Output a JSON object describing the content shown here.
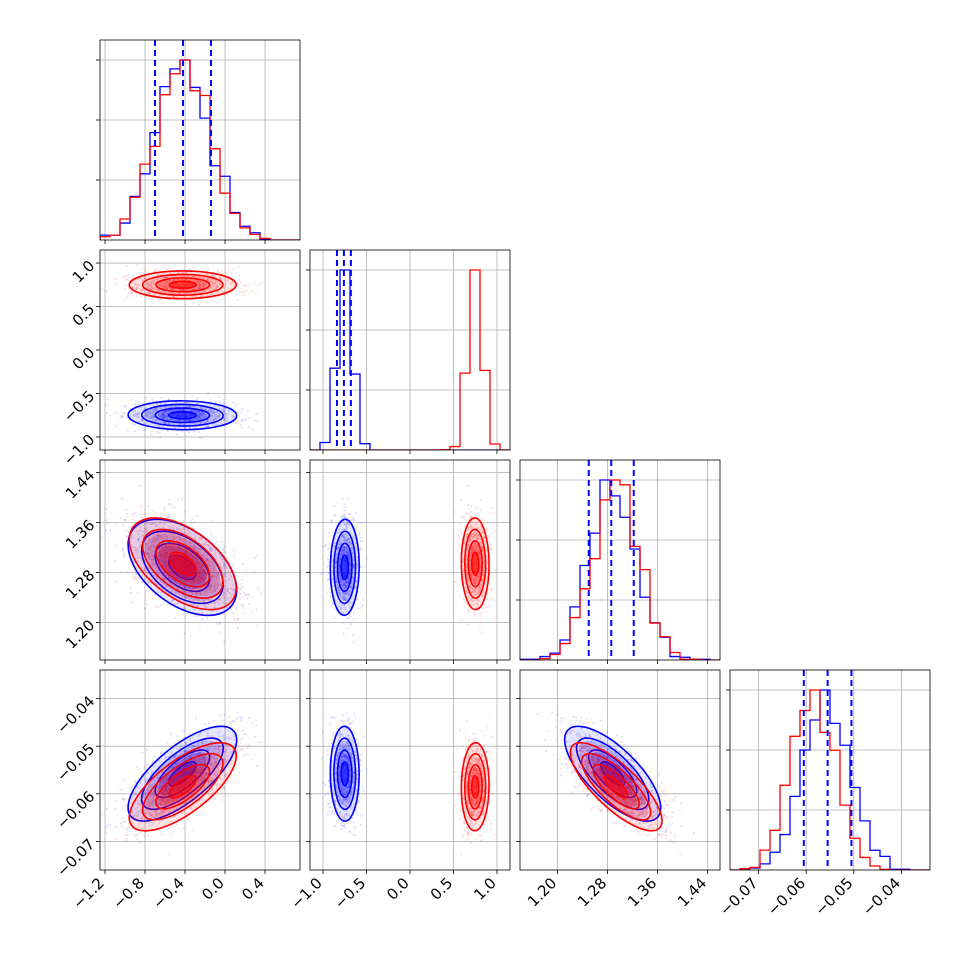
{
  "chart_data": {
    "type": "corner",
    "grid": true,
    "series": [
      {
        "name": "",
        "color": "#0000ff",
        "mean": [
          -0.42,
          -0.75,
          1.286,
          -0.0555
        ],
        "std": [
          0.27,
          0.08,
          0.04,
          0.0049
        ],
        "quantiles": [
          [
            -0.7,
            -0.42,
            -0.14
          ],
          [
            -0.84,
            -0.76,
            -0.68
          ],
          [
            1.25,
            1.286,
            1.322
          ],
          [
            -0.0605,
            -0.0555,
            -0.0505
          ]
        ],
        "corr": {
          "1-0": 0.0,
          "2-0": -0.5,
          "2-1": 0.0,
          "3-0": 0.5,
          "3-1": 0.0,
          "3-2": -0.7
        }
      },
      {
        "name": "",
        "color": "#ff0000",
        "mean": [
          -0.42,
          0.75,
          1.293,
          -0.0585
        ],
        "std": [
          0.27,
          0.08,
          0.036,
          0.0045
        ],
        "corr": {
          "1-0": 0.0,
          "2-0": -0.5,
          "2-1": 0.0,
          "3-0": 0.5,
          "3-1": 0.0,
          "3-2": -0.7
        }
      }
    ],
    "axes": [
      {
        "range": [
          -1.25,
          0.75
        ],
        "ticks": [
          "-1.2",
          "-0.8",
          "-0.4",
          "0.0",
          "0.4"
        ]
      },
      {
        "range": [
          -1.15,
          1.15
        ],
        "ticks": [
          "-1.0",
          "-0.5",
          "0.0",
          "0.5",
          "1.0"
        ]
      },
      {
        "range": [
          1.14,
          1.46
        ],
        "ticks": [
          "1.20",
          "1.28",
          "1.36",
          "1.44"
        ]
      },
      {
        "range": [
          -0.076,
          -0.034
        ],
        "ticks": [
          "-0.07",
          "-0.06",
          "-0.05",
          "-0.04"
        ]
      }
    ],
    "hist_ymax": [
      1,
      1,
      1,
      1
    ]
  }
}
